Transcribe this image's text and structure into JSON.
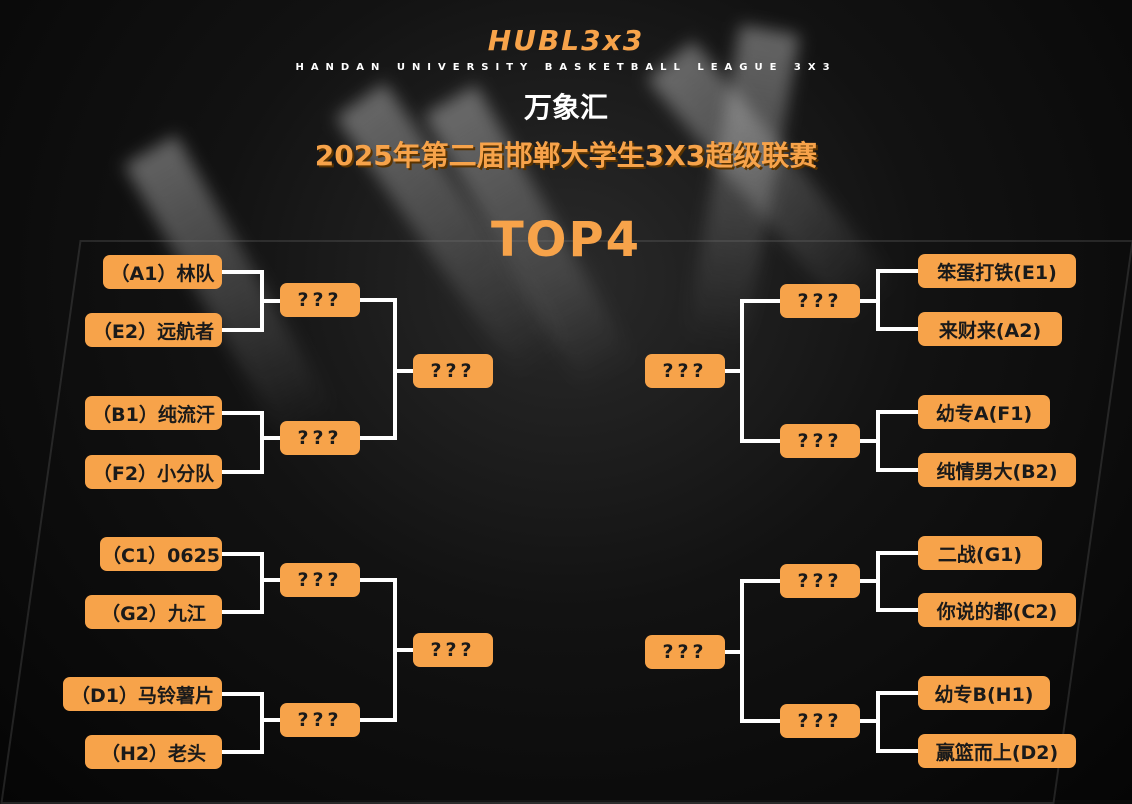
{
  "header": {
    "logo": "HUBL3x3",
    "subtitle": "HANDAN UNIVERSITY BASKETBALL LEAGUE 3X3",
    "sponsor": "万象汇",
    "title": "2025年第二届邯郸大学生3X3超级联赛",
    "stage": "TOP4"
  },
  "colors": {
    "accent": "#f7a34a",
    "lines": "#ffffff",
    "background": "#0a0a0a"
  },
  "bracket": {
    "left_teams": [
      "（A1）林队",
      "（E2）远航者",
      "（B1）纯流汗",
      "（F2）小分队",
      "（C1）0625",
      "（G2）九江",
      "（D1）马铃薯片",
      "（H2）老头"
    ],
    "right_teams": [
      "笨蛋打铁(E1)",
      "来财来(A2)",
      "幼专A(F1)",
      "纯情男大(B2)",
      "二战(G1)",
      "你说的都(C2)",
      "幼专B(H1)",
      "赢篮而上(D2)"
    ],
    "placeholder": "???"
  }
}
